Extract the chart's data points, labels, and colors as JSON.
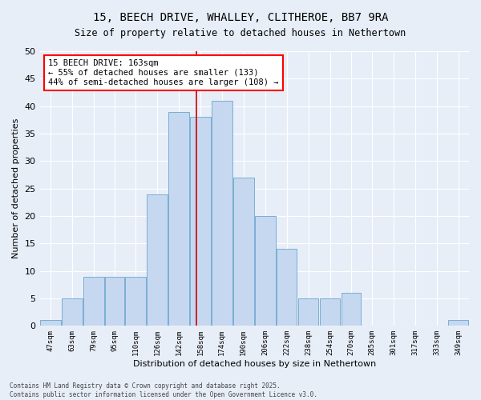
{
  "title_line1": "15, BEECH DRIVE, WHALLEY, CLITHEROE, BB7 9RA",
  "title_line2": "Size of property relative to detached houses in Nethertown",
  "xlabel": "Distribution of detached houses by size in Nethertown",
  "ylabel": "Number of detached properties",
  "bar_color": "#c5d8f0",
  "bar_edge_color": "#7aaed4",
  "background_color": "#e8eef8",
  "grid_color": "#ffffff",
  "vline_color": "#cc0000",
  "vline_x": 163,
  "annotation_title": "15 BEECH DRIVE: 163sqm",
  "annotation_line2": "← 55% of detached houses are smaller (133)",
  "annotation_line3": "44% of semi-detached houses are larger (108) →",
  "bins": [
    47,
    63,
    79,
    95,
    110,
    126,
    142,
    158,
    174,
    190,
    206,
    222,
    238,
    254,
    270,
    285,
    301,
    317,
    333,
    349,
    365
  ],
  "values": [
    1,
    5,
    9,
    9,
    9,
    24,
    39,
    38,
    41,
    27,
    20,
    14,
    5,
    5,
    6,
    0,
    0,
    0,
    0,
    1
  ],
  "ylim": [
    0,
    50
  ],
  "yticks": [
    0,
    5,
    10,
    15,
    20,
    25,
    30,
    35,
    40,
    45,
    50
  ],
  "footnote_line1": "Contains HM Land Registry data © Crown copyright and database right 2025.",
  "footnote_line2": "Contains public sector information licensed under the Open Government Licence v3.0."
}
